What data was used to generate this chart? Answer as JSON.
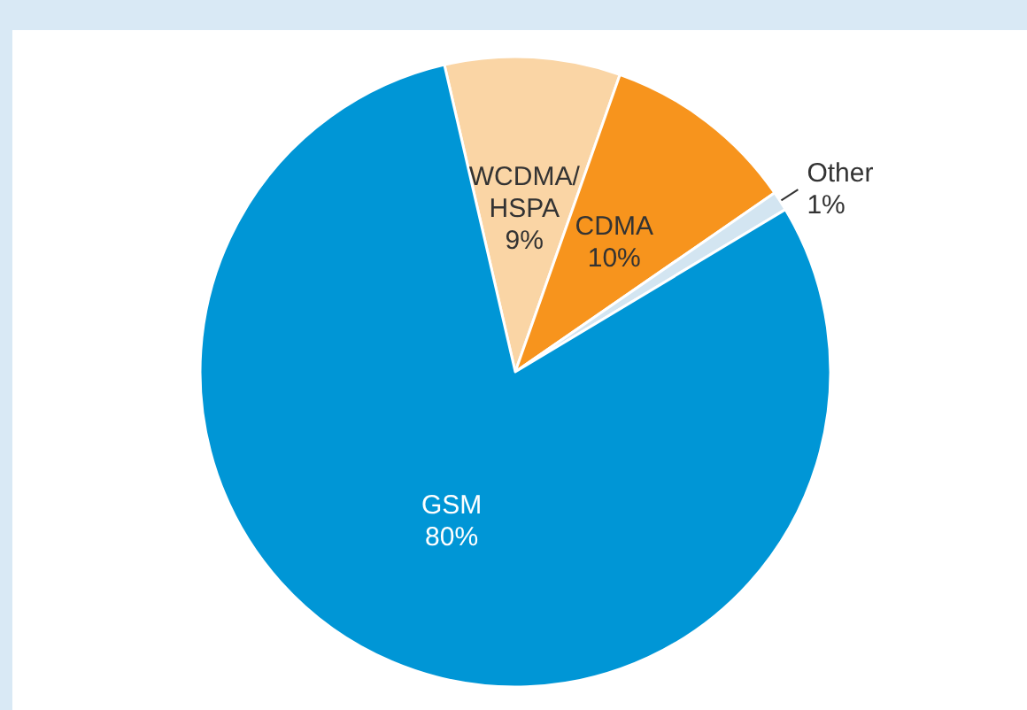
{
  "chart_data": {
    "type": "pie",
    "categories": [
      "WCDMA/HSPA",
      "CDMA",
      "Other",
      "GSM"
    ],
    "values": [
      9,
      10,
      1,
      80
    ],
    "colors": [
      "#fad5a5",
      "#f7941d",
      "#d3e5f1",
      "#0096d6"
    ],
    "value_labels": [
      "9%",
      "10%",
      "1%",
      "80%"
    ],
    "legend": false
  }
}
